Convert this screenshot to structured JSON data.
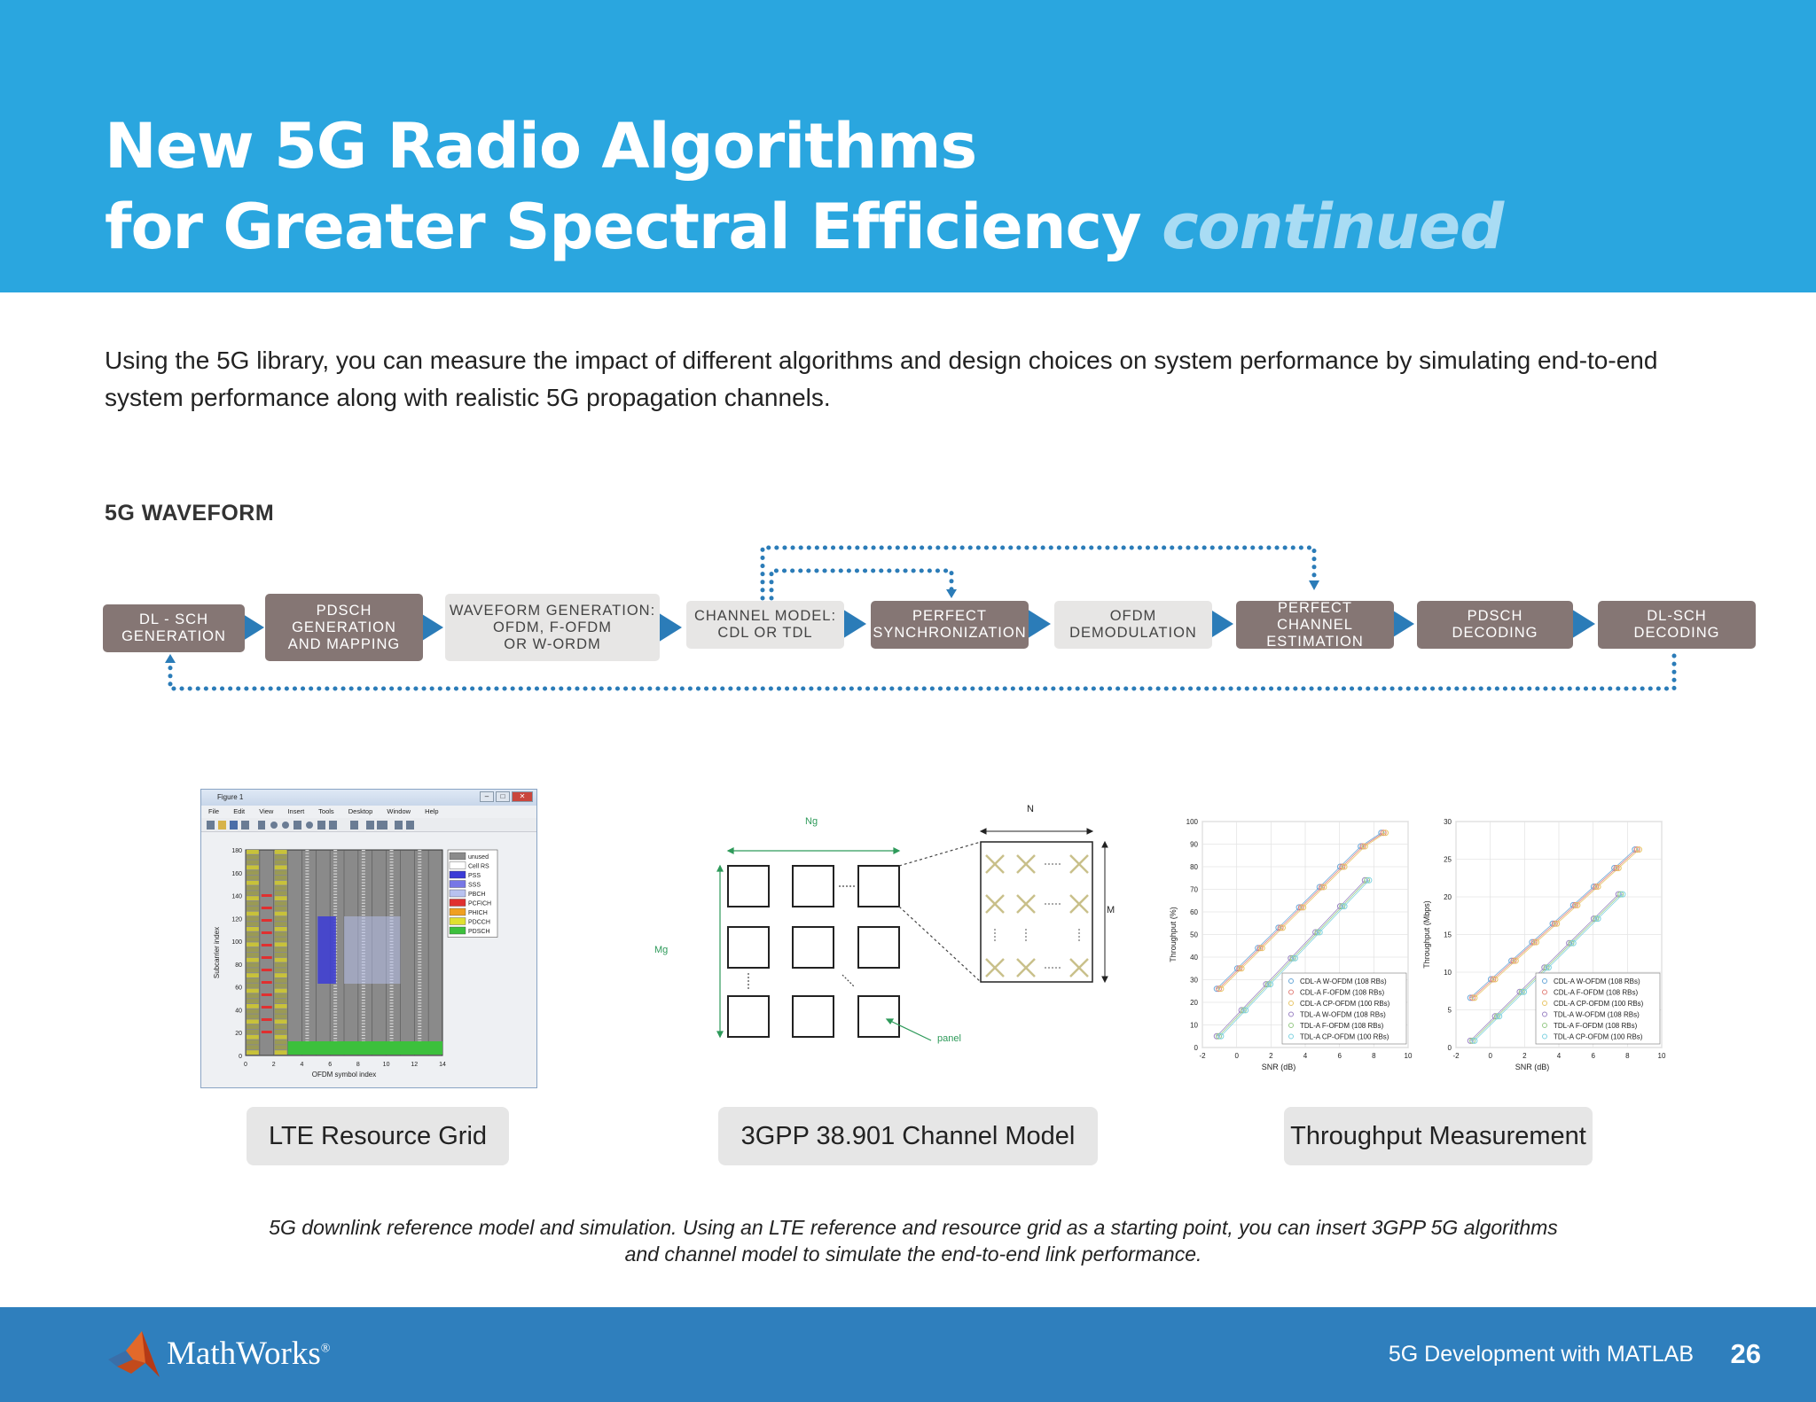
{
  "header": {
    "title_line1": "New 5G Radio Algorithms",
    "title_line2": "for Greater Spectral Efficiency",
    "title_accent": "continued",
    "bg_color": "#2aa6df"
  },
  "intro": "Using the 5G library, you can measure the impact of different algorithms and design choices on system performance by simulating end-to-end system performance along with realistic 5G propagation channels.",
  "section_heading": "5G WAVEFORM",
  "flow": {
    "blocks": [
      {
        "line1": "DL - SCH",
        "line2": "GENERATION",
        "line3": "",
        "style": "dark"
      },
      {
        "line1": "PDSCH",
        "line2": "GENERATION",
        "line3": "AND MAPPING",
        "style": "dark"
      },
      {
        "line1": "WAVEFORM GENERATION:",
        "line2": "OFDM, F-OFDM",
        "line3": "OR W-ORDM",
        "style": "light"
      },
      {
        "line1": "CHANNEL MODEL:",
        "line2": "CDL OR TDL",
        "line3": "",
        "style": "light"
      },
      {
        "line1": "PERFECT",
        "line2": "SYNCHRONIZATION",
        "line3": "",
        "style": "dark"
      },
      {
        "line1": "OFDM",
        "line2": "DEMODULATION",
        "line3": "",
        "style": "light"
      },
      {
        "line1": "PERFECT CHANNEL",
        "line2": "ESTIMATION",
        "line3": "",
        "style": "dark"
      },
      {
        "line1": "PDSCH",
        "line2": "DECODING",
        "line3": "",
        "style": "dark"
      },
      {
        "line1": "DL-SCH",
        "line2": "DECODING",
        "line3": "",
        "style": "dark"
      }
    ],
    "arrow_color": "#2b7cb8"
  },
  "figure1": {
    "window_title": "Figure 1",
    "menu": [
      "File",
      "Edit",
      "View",
      "Insert",
      "Tools",
      "Desktop",
      "Window",
      "Help"
    ],
    "ylabel": "Subcarrier index",
    "xlabel": "OFDM symbol index",
    "yticks": [
      "180",
      "160",
      "140",
      "120",
      "100",
      "80",
      "60",
      "40",
      "20",
      "0"
    ],
    "xticks": [
      "0",
      "2",
      "4",
      "6",
      "8",
      "10",
      "12",
      "14"
    ],
    "legend": [
      {
        "name": "unused",
        "color": "#8a8a8a"
      },
      {
        "name": "Cell RS",
        "color": "#ffffff"
      },
      {
        "name": "PSS",
        "color": "#3b3bd6"
      },
      {
        "name": "SSS",
        "color": "#7777e6"
      },
      {
        "name": "PBCH",
        "color": "#b8c2f0"
      },
      {
        "name": "PCFICH",
        "color": "#e03030"
      },
      {
        "name": "PHICH",
        "color": "#f0a020"
      },
      {
        "name": "PDCCH",
        "color": "#e0e030"
      },
      {
        "name": "PDSCH",
        "color": "#3cc03c"
      }
    ]
  },
  "channel_model": {
    "label_ng": "Ng",
    "label_mg": "Mg",
    "label_n": "N",
    "label_m": "M",
    "label_panel": "panel"
  },
  "throughput": {
    "left": {
      "ylabel": "Throughput (%)",
      "xlabel": "SNR (dB)",
      "yticks": [
        "100",
        "90",
        "80",
        "70",
        "60",
        "50",
        "40",
        "30",
        "20",
        "10",
        "0"
      ],
      "xticks": [
        "-2",
        "0",
        "2",
        "4",
        "6",
        "8",
        "10"
      ]
    },
    "right": {
      "ylabel": "Throughput (Mbps)",
      "xlabel": "SNR (dB)",
      "yticks": [
        "30",
        "25",
        "20",
        "15",
        "10",
        "5",
        "0"
      ],
      "xticks": [
        "-2",
        "0",
        "2",
        "4",
        "6",
        "8",
        "10"
      ]
    },
    "legend": [
      "CDL-A W-OFDM (108 RBs)",
      "CDL-A F-OFDM (108 RBs)",
      "CDL-A CP-OFDM (100 RBs)",
      "TDL-A W-OFDM (108 RBs)",
      "TDL-A F-OFDM (108 RBs)",
      "TDL-A CP-OFDM (100 RBs)"
    ],
    "legend_colors": [
      "#6aa7d8",
      "#e2807a",
      "#e8c566",
      "#9b84c4",
      "#95c985",
      "#7fd2e0"
    ]
  },
  "panel_labels": {
    "left": "LTE Resource Grid",
    "center": "3GPP 38.901 Channel Model",
    "right": "Throughput Measurement"
  },
  "caption": "5G downlink reference model and simulation. Using an LTE reference and resource grid as a starting point, you can insert 3GPP 5G algorithms and channel model to simulate the end-to-end link performance.",
  "footer": {
    "logo_text": "MathWorks",
    "logo_mark": "®",
    "right_text": "5G Development with MATLAB",
    "page_number": "26"
  }
}
